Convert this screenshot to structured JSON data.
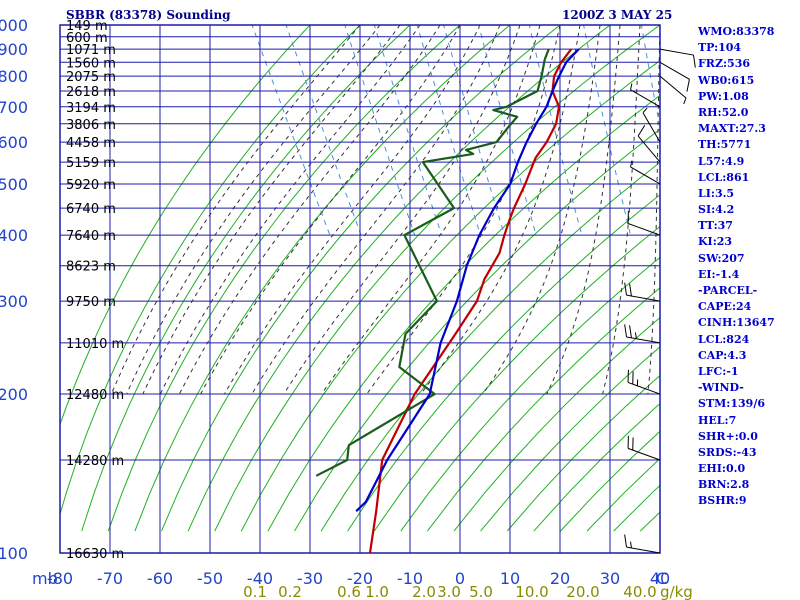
{
  "header": {
    "station_title": "SBBR (83378) Sounding",
    "time_title": "1200Z  3 MAY 25"
  },
  "indices": [
    "WMO:83378",
    "TP:104",
    "FRZ:536",
    "WB0:615",
    "PW:1.08",
    "RH:52.0",
    "MAXT:27.3",
    "TH:5771",
    "L57:4.9",
    "LCL:861",
    "LI:3.5",
    "SI:4.2",
    "TT:37",
    "KI:23",
    "SW:207",
    "EI:-1.4",
    "-PARCEL-",
    "CAPE:24",
    "CINH:13647",
    "LCL:824",
    "CAP:4.3",
    "LFC:-1",
    "-WIND-",
    "STM:139/6",
    "HEL:7",
    "SHR+:0.0",
    "SRDS:-43",
    "EHI:0.0",
    "BRN:2.8",
    "BSHR:9"
  ],
  "colors": {
    "grid": "#1c1ca8",
    "dry_adiabat": "#22b022",
    "moist_adiabat": "#333333",
    "mixing_ratio": "#4a8fd8",
    "temperature": "#c00000",
    "dewpoint": "#1a5c1a",
    "parcel": "#0000c8",
    "axis_text": "#2244cc",
    "mixing_text": "#8b8b00",
    "index_text": "#0000cd"
  },
  "chart_data": {
    "type": "line",
    "title": "SBBR (83378) Sounding",
    "x_axis_unit": "C",
    "xlim": [
      -80,
      40
    ],
    "x_ticks": [
      -80,
      -70,
      -60,
      -50,
      -40,
      -30,
      -20,
      -10,
      0,
      10,
      20,
      30,
      40
    ],
    "y_axis_unit": "mb",
    "ylim": [
      1000,
      100
    ],
    "y_scale": "log",
    "y_ticks": [
      100,
      200,
      300,
      400,
      500,
      600,
      700,
      800,
      900,
      1000
    ],
    "heights": [
      {
        "p": 100,
        "label": "16630 m"
      },
      {
        "p": 150,
        "label": "14280 m"
      },
      {
        "p": 200,
        "label": "12480 m"
      },
      {
        "p": 250,
        "label": "11010 m"
      },
      {
        "p": 300,
        "label": "9750 m"
      },
      {
        "p": 350,
        "label": "8623 m"
      },
      {
        "p": 400,
        "label": "7640 m"
      },
      {
        "p": 450,
        "label": "6740 m"
      },
      {
        "p": 500,
        "label": "5920 m"
      },
      {
        "p": 550,
        "label": "5159 m"
      },
      {
        "p": 600,
        "label": "4458 m"
      },
      {
        "p": 650,
        "label": "3806 m"
      },
      {
        "p": 700,
        "label": "3194 m"
      },
      {
        "p": 750,
        "label": "2618 m"
      },
      {
        "p": 800,
        "label": "2075 m"
      },
      {
        "p": 850,
        "label": "1560 m"
      },
      {
        "p": 900,
        "label": "1071 m"
      },
      {
        "p": 950,
        "label": "600 m"
      },
      {
        "p": 1000,
        "label": "149 m"
      }
    ],
    "mixing_ratio_labels": [
      "0.1",
      "0.2",
      "0.6",
      "1.0",
      "2.0",
      "3.0",
      "5.0",
      "10.0",
      "20.0",
      "40.0"
    ],
    "mixing_ratio_unit": "g/kg",
    "series": [
      {
        "key": "temperature",
        "values": [
          [
            900,
            19.5
          ],
          [
            850,
            16
          ],
          [
            800,
            13
          ],
          [
            750,
            11
          ],
          [
            700,
            10.5
          ],
          [
            650,
            8
          ],
          [
            600,
            4
          ],
          [
            560,
            0
          ],
          [
            500,
            -5
          ],
          [
            450,
            -10
          ],
          [
            430,
            -12
          ],
          [
            400,
            -15
          ],
          [
            370,
            -18
          ],
          [
            330,
            -24
          ],
          [
            300,
            -28
          ],
          [
            260,
            -36
          ],
          [
            230,
            -43
          ],
          [
            200,
            -51
          ],
          [
            150,
            -65
          ],
          [
            120,
            -72
          ],
          [
            100,
            -78
          ]
        ]
      },
      {
        "key": "dewpoint",
        "values": [
          [
            900,
            15
          ],
          [
            860,
            13
          ],
          [
            800,
            10.5
          ],
          [
            750,
            8
          ],
          [
            700,
            0
          ],
          [
            690,
            -3
          ],
          [
            670,
            1
          ],
          [
            640,
            -2
          ],
          [
            600,
            -6
          ],
          [
            580,
            -13
          ],
          [
            570,
            -12
          ],
          [
            550,
            -23
          ],
          [
            450,
            -22
          ],
          [
            400,
            -35
          ],
          [
            300,
            -36
          ],
          [
            260,
            -46
          ],
          [
            225,
            -51
          ],
          [
            200,
            -47
          ],
          [
            160,
            -70
          ],
          [
            150,
            -72
          ],
          [
            140,
            -80
          ]
        ]
      },
      {
        "key": "parcel",
        "values": [
          [
            900,
            21
          ],
          [
            850,
            17
          ],
          [
            800,
            14
          ],
          [
            750,
            11
          ],
          [
            700,
            8
          ],
          [
            650,
            4
          ],
          [
            600,
            0
          ],
          [
            550,
            -4
          ],
          [
            500,
            -8
          ],
          [
            450,
            -14
          ],
          [
            400,
            -20
          ],
          [
            350,
            -26
          ],
          [
            300,
            -32
          ],
          [
            250,
            -40
          ],
          [
            200,
            -48
          ],
          [
            150,
            -64
          ],
          [
            125,
            -73
          ],
          [
            120,
            -76
          ]
        ]
      }
    ],
    "wind_barbs": [
      {
        "p": 900,
        "dir": 100,
        "spd": 10
      },
      {
        "p": 850,
        "dir": 120,
        "spd": 10
      },
      {
        "p": 800,
        "dir": 130,
        "spd": 5
      },
      {
        "p": 700,
        "dir": 300,
        "spd": 5
      },
      {
        "p": 600,
        "dir": 330,
        "spd": 5
      },
      {
        "p": 550,
        "dir": 320,
        "spd": 10
      },
      {
        "p": 500,
        "dir": 300,
        "spd": 5
      },
      {
        "p": 400,
        "dir": 290,
        "spd": 10
      },
      {
        "p": 300,
        "dir": 280,
        "spd": 20
      },
      {
        "p": 250,
        "dir": 280,
        "spd": 25
      },
      {
        "p": 200,
        "dir": 290,
        "spd": 25
      },
      {
        "p": 150,
        "dir": 290,
        "spd": 20
      },
      {
        "p": 100,
        "dir": 280,
        "spd": 15
      }
    ]
  }
}
